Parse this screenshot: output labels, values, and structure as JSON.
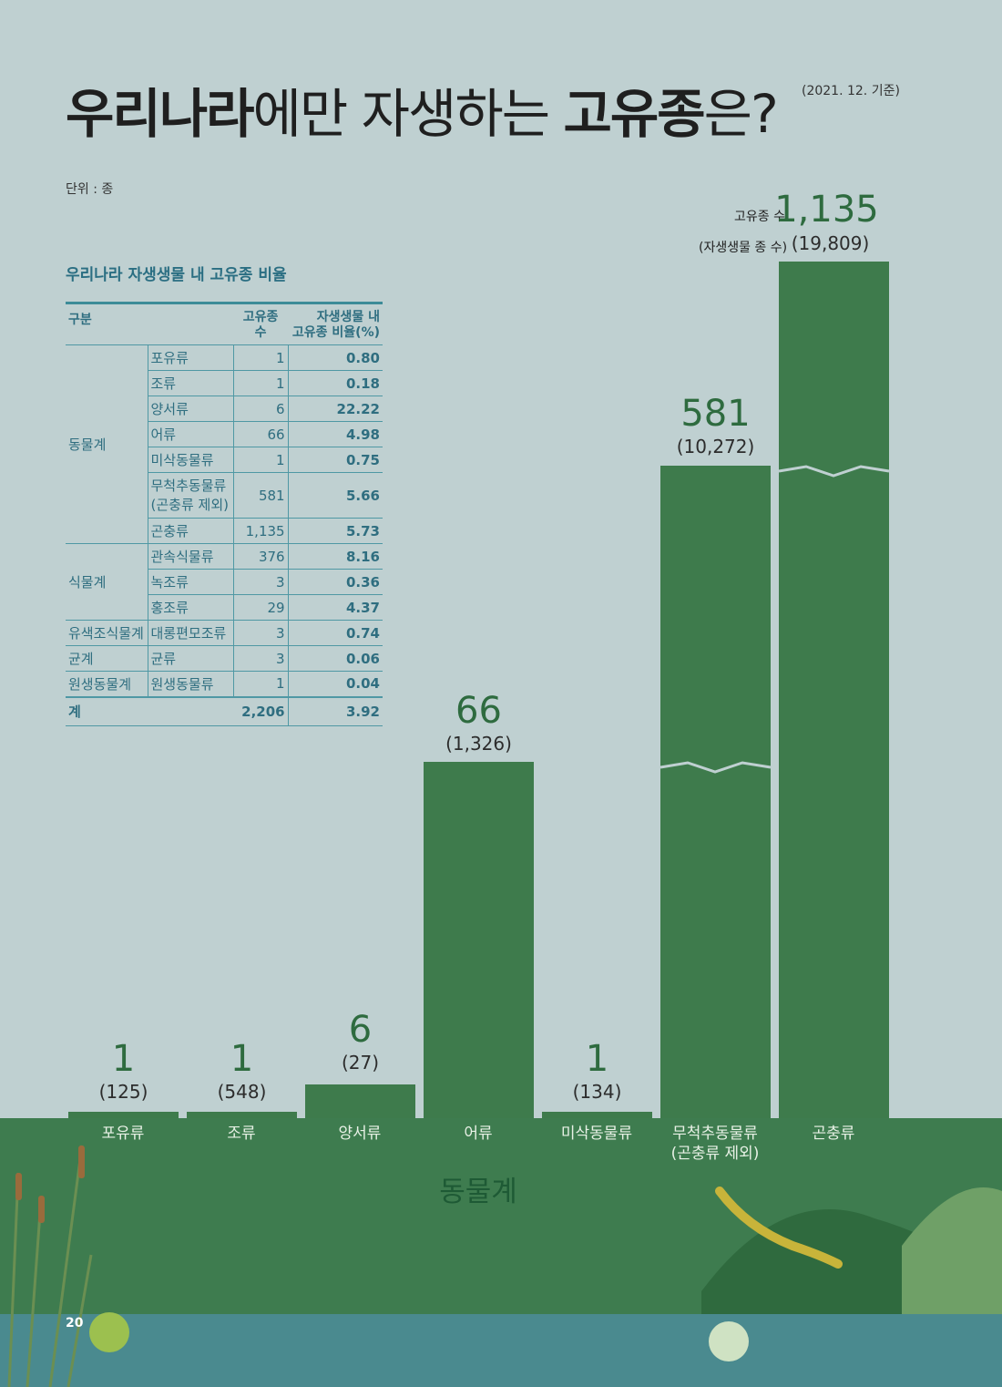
{
  "header": {
    "title_bold_1": "우리나라",
    "title_light_1": "에만 자생하는 ",
    "title_bold_2": "고유종",
    "title_light_2": "은?",
    "basis": "(2021. 12. 기준)",
    "unit": "단위 : 종"
  },
  "legend": {
    "endemic_label": "고유종 수",
    "native_label": "(자생생물 종 수)"
  },
  "table": {
    "title": "우리나라 자생생물 내 고유종 비율",
    "headers": [
      "구분",
      "고유종 수",
      "자생생물 내",
      "고유종 비율(%)"
    ],
    "groups": {
      "animal": "동물계",
      "plant": "식물계",
      "chromista": "유색조식물계",
      "fungi": "균계",
      "protozoa": "원생동물계"
    },
    "rows": [
      {
        "sub": "포유류",
        "count": "1",
        "ratio": "0.80"
      },
      {
        "sub": "조류",
        "count": "1",
        "ratio": "0.18"
      },
      {
        "sub": "양서류",
        "count": "6",
        "ratio": "22.22"
      },
      {
        "sub": "어류",
        "count": "66",
        "ratio": "4.98"
      },
      {
        "sub": "미삭동물류",
        "count": "1",
        "ratio": "0.75"
      },
      {
        "sub": "무척추동물류",
        "sub2": "(곤충류 제외)",
        "count": "581",
        "ratio": "5.66"
      },
      {
        "sub": "곤충류",
        "count": "1,135",
        "ratio": "5.73"
      },
      {
        "sub": "관속식물류",
        "count": "376",
        "ratio": "8.16"
      },
      {
        "sub": "녹조류",
        "count": "3",
        "ratio": "0.36"
      },
      {
        "sub": "홍조류",
        "count": "29",
        "ratio": "4.37"
      },
      {
        "sub": "대롱편모조류",
        "count": "3",
        "ratio": "0.74"
      },
      {
        "sub": "균류",
        "count": "3",
        "ratio": "0.06"
      },
      {
        "sub": "원생동물류",
        "count": "1",
        "ratio": "0.04"
      }
    ],
    "total": {
      "label": "계",
      "count": "2,206",
      "ratio": "3.92"
    }
  },
  "chart_data": {
    "type": "bar",
    "categories": [
      "포유류",
      "조류",
      "양서류",
      "어류",
      "미삭동물류",
      "무척추동물류",
      "곤충류"
    ],
    "category_sub": [
      "",
      "",
      "",
      "",
      "",
      "(곤충류 제외)",
      ""
    ],
    "group_label": "동물계",
    "series": [
      {
        "name": "고유종 수",
        "values": [
          1,
          1,
          6,
          66,
          1,
          581,
          1135
        ]
      },
      {
        "name": "자생생물 종 수",
        "values": [
          125,
          548,
          27,
          1326,
          134,
          10272,
          19809
        ]
      }
    ],
    "value_labels": [
      "1",
      "1",
      "6",
      "66",
      "1",
      "581",
      "1,135"
    ],
    "total_labels": [
      "(125)",
      "(548)",
      "(27)",
      "(1,326)",
      "(134)",
      "(10,272)",
      "(19,809)"
    ],
    "axis_break": [
      false,
      false,
      false,
      false,
      false,
      true,
      true
    ],
    "bar_color": "#3e7b4c",
    "label_color": "#2e6b3f"
  },
  "footer": {
    "page_number": "20"
  }
}
